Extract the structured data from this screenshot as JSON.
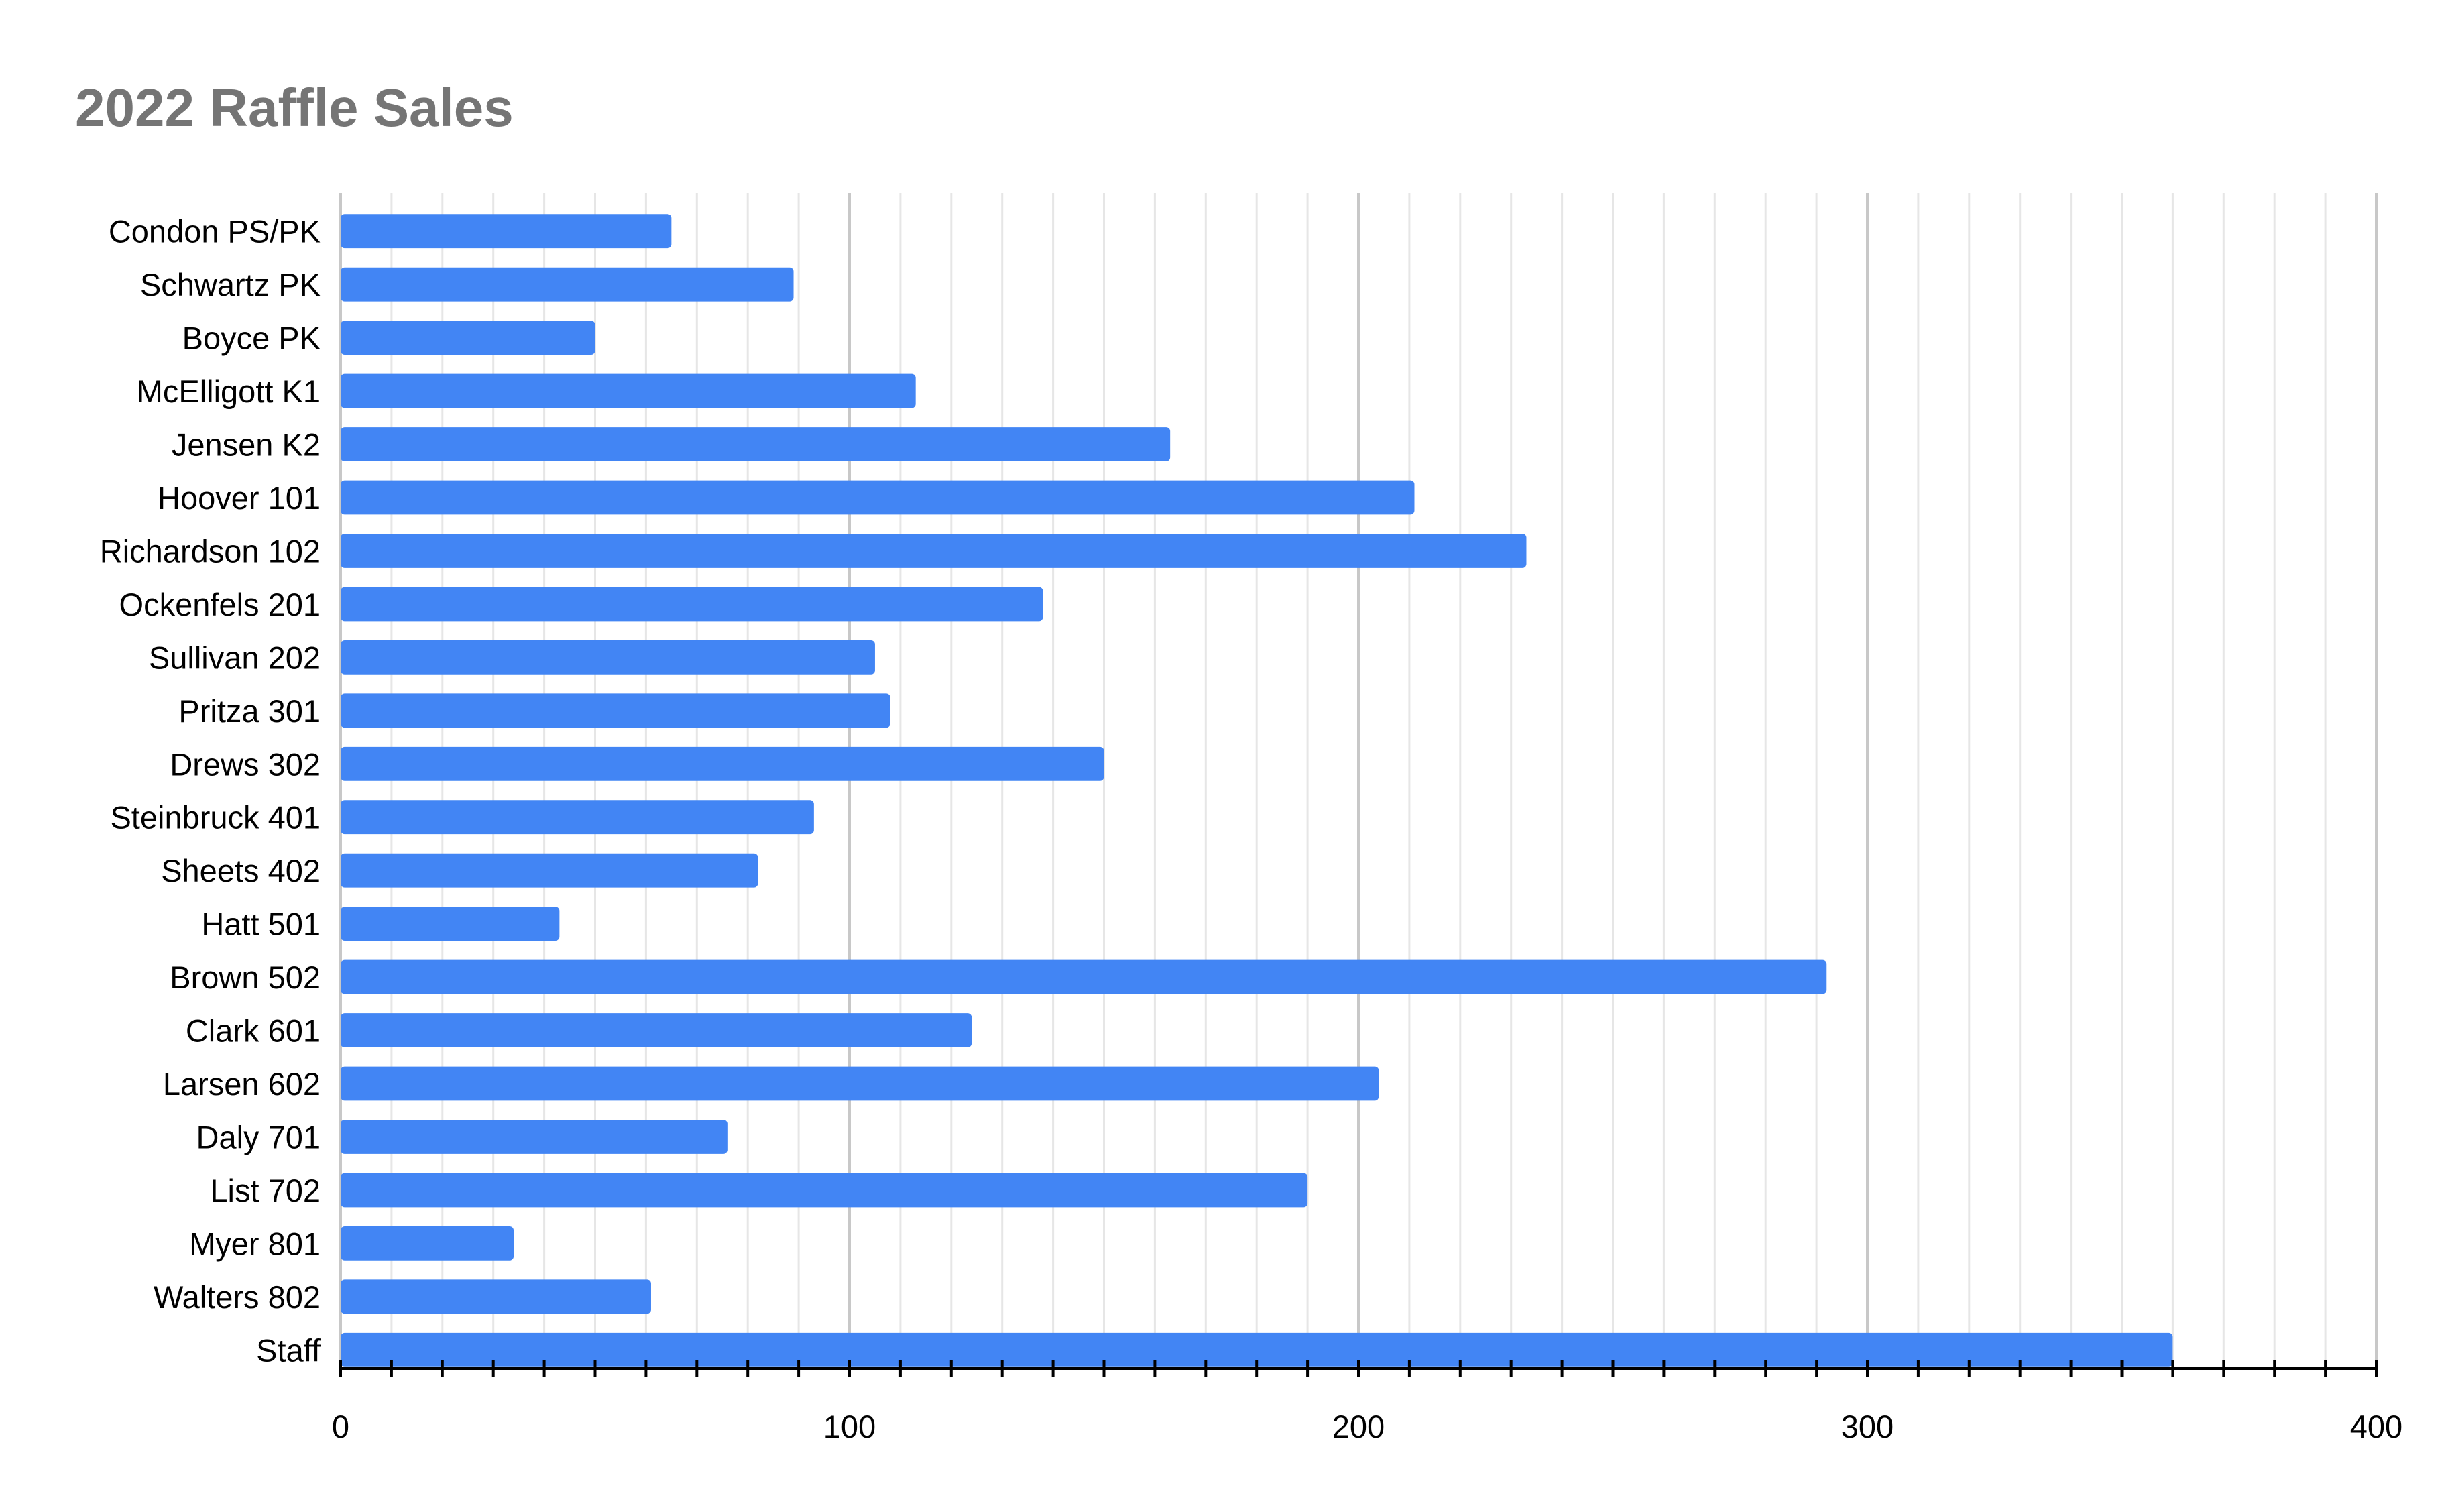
{
  "chart_data": {
    "type": "bar",
    "orientation": "horizontal",
    "title": "2022 Raffle Sales",
    "xlabel": "",
    "ylabel": "",
    "categories": [
      "Condon PS/PK",
      "Schwartz PK",
      "Boyce PK",
      "McElligott K1",
      "Jensen K2",
      "Hoover 101",
      "Richardson 102",
      "Ockenfels 201",
      "Sullivan 202",
      "Pritza 301",
      "Drews 302",
      "Steinbruck 401",
      "Sheets 402",
      "Hatt 501",
      "Brown 502",
      "Clark 601",
      "Larsen 602",
      "Daly 701",
      "List 702",
      "Myer 801",
      "Walters 802",
      "Staff"
    ],
    "values": [
      65,
      89,
      50,
      113,
      163,
      211,
      233,
      138,
      105,
      108,
      150,
      93,
      82,
      43,
      292,
      124,
      204,
      76,
      190,
      34,
      61,
      360
    ],
    "xlim": [
      0,
      400
    ],
    "x_ticks": [
      "0",
      "100",
      "200",
      "300",
      "400"
    ],
    "grid": true,
    "legend": "none",
    "bar_color": "#4285f4"
  }
}
